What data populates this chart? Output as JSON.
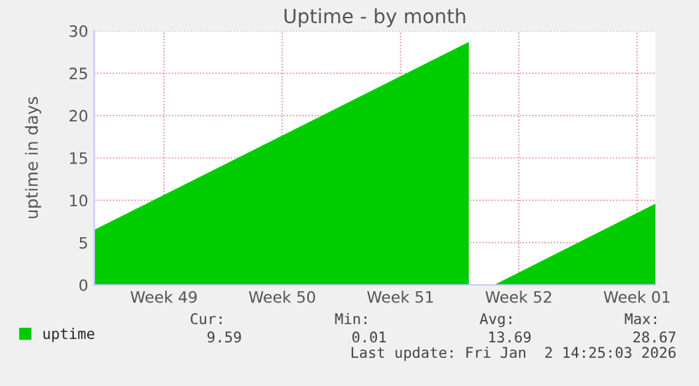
{
  "chart_data": {
    "type": "area",
    "title": "Uptime - by month",
    "ylabel": "uptime in days",
    "x": [
      "2025-11-30T09:00",
      "2025-12-22T13:00",
      "2025-12-23T07:00",
      "2025-12-24T01:00",
      "2026-01-02T14:00"
    ],
    "series": [
      {
        "name": "uptime",
        "color": "#00cc00",
        "values": [
          6.5,
          28.7,
          null,
          0,
          9.6
        ]
      }
    ],
    "xlim": [
      "2025-11-30T09:00",
      "2026-01-02T14:00"
    ],
    "xticks": [
      {
        "value": "2025-12-04T12:00",
        "label": "Week 49"
      },
      {
        "value": "2025-12-11T12:00",
        "label": "Week 50"
      },
      {
        "value": "2025-12-18T12:00",
        "label": "Week 51"
      },
      {
        "value": "2025-12-25T12:00",
        "label": "Week 52"
      },
      {
        "value": "2026-01-01T12:00",
        "label": "Week 01"
      }
    ],
    "ylim": [
      0,
      30
    ],
    "yticks": [
      0,
      5,
      10,
      15,
      20,
      25,
      30
    ],
    "grid": true,
    "legend": "bottom left",
    "annotations": [
      "Cur:",
      "Min:",
      "Avg:",
      "Max:",
      "9.59",
      "0.01",
      "13.69",
      "28.67",
      "Last update: Fri Jan  2 14:25:03 2026"
    ]
  }
}
